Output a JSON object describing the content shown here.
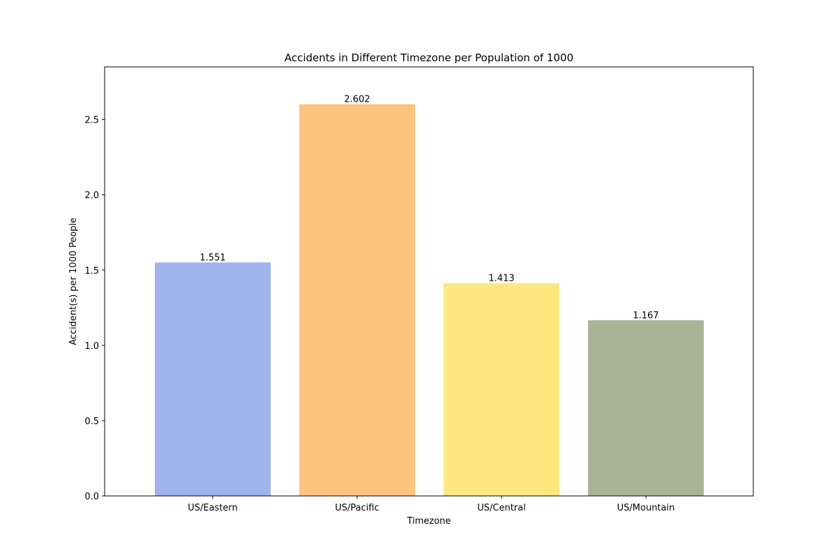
{
  "chart_data": {
    "type": "bar",
    "title": "Accidents in Different Timezone per Population of 1000",
    "xlabel": "Timezone",
    "ylabel": "Accident(s) per 1000 People",
    "categories": [
      "US/Eastern",
      "US/Pacific",
      "US/Central",
      "US/Mountain"
    ],
    "values": [
      1.551,
      2.602,
      1.413,
      1.167
    ],
    "data_labels": [
      "1.551",
      "2.602",
      "1.413",
      "1.167"
    ],
    "colors": [
      "#a0b4ec",
      "#fdc47f",
      "#fde880",
      "#a9b497"
    ],
    "ylim": [
      0,
      2.85
    ],
    "yticks": [
      0,
      0.5,
      1.0,
      1.5,
      2.0,
      2.5
    ],
    "ytick_labels": [
      "0.0",
      "0.5",
      "1.0",
      "1.5",
      "2.0",
      "2.5"
    ],
    "grid": false,
    "legend": "none"
  }
}
